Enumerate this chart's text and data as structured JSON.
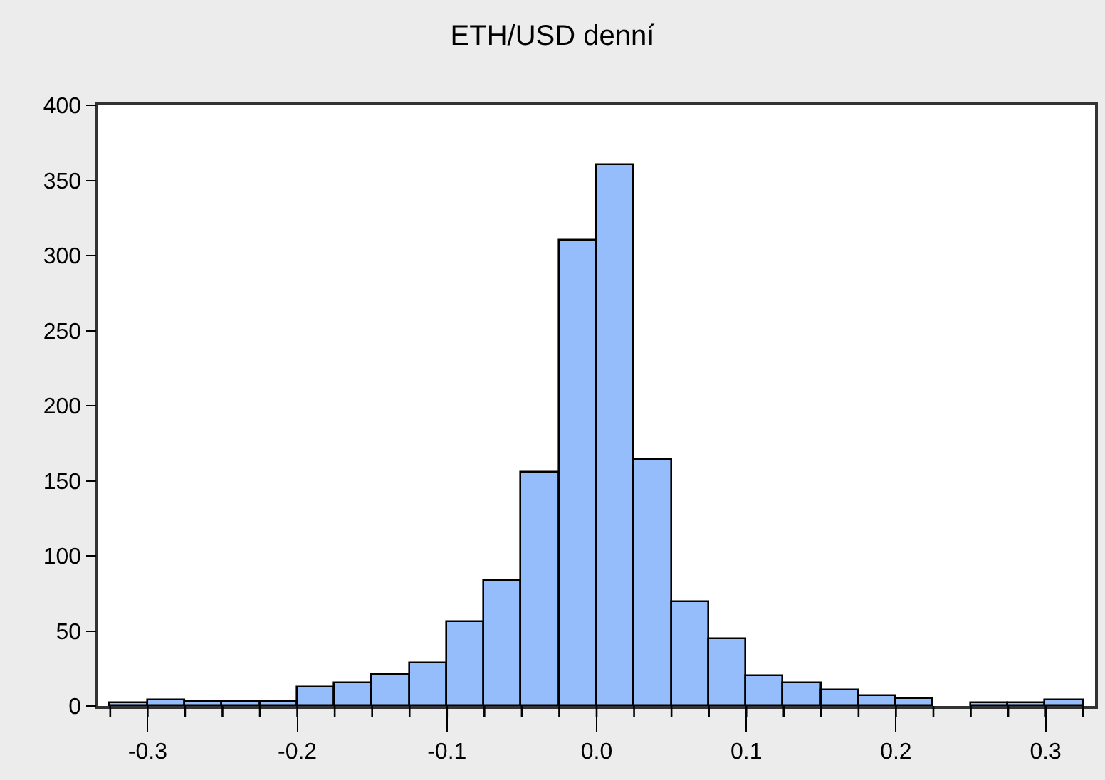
{
  "chart_data": {
    "type": "histogram",
    "title": "ETH/USD denní",
    "bins": [
      -0.325,
      -0.3,
      -0.275,
      -0.25,
      -0.225,
      -0.2,
      -0.175,
      -0.15,
      -0.125,
      -0.1,
      -0.075,
      -0.05,
      -0.025,
      0.0,
      0.025,
      0.05,
      0.075,
      0.1,
      0.125,
      0.15,
      0.175,
      0.2,
      0.225,
      0.25,
      0.275,
      0.3,
      0.325
    ],
    "values": [
      2,
      4,
      3,
      3,
      3,
      12,
      15,
      21,
      28,
      56,
      83,
      155,
      310,
      360,
      164,
      69,
      45,
      20,
      15,
      10,
      7,
      5,
      0,
      2,
      2,
      4
    ],
    "color": "#96bdfb",
    "xlim": [
      -0.333,
      0.333
    ],
    "xticks": [
      {
        "value": -0.3,
        "label": "-0.3"
      },
      {
        "value": -0.2,
        "label": "-0.2"
      },
      {
        "value": -0.1,
        "label": "-0.1"
      },
      {
        "value": 0.0,
        "label": "0.0"
      },
      {
        "value": 0.1,
        "label": "0.1"
      },
      {
        "value": 0.2,
        "label": "0.2"
      },
      {
        "value": 0.3,
        "label": "0.3"
      }
    ],
    "ylim": [
      0,
      400
    ],
    "yticks": [
      0,
      50,
      100,
      150,
      200,
      250,
      300,
      350,
      400
    ]
  }
}
